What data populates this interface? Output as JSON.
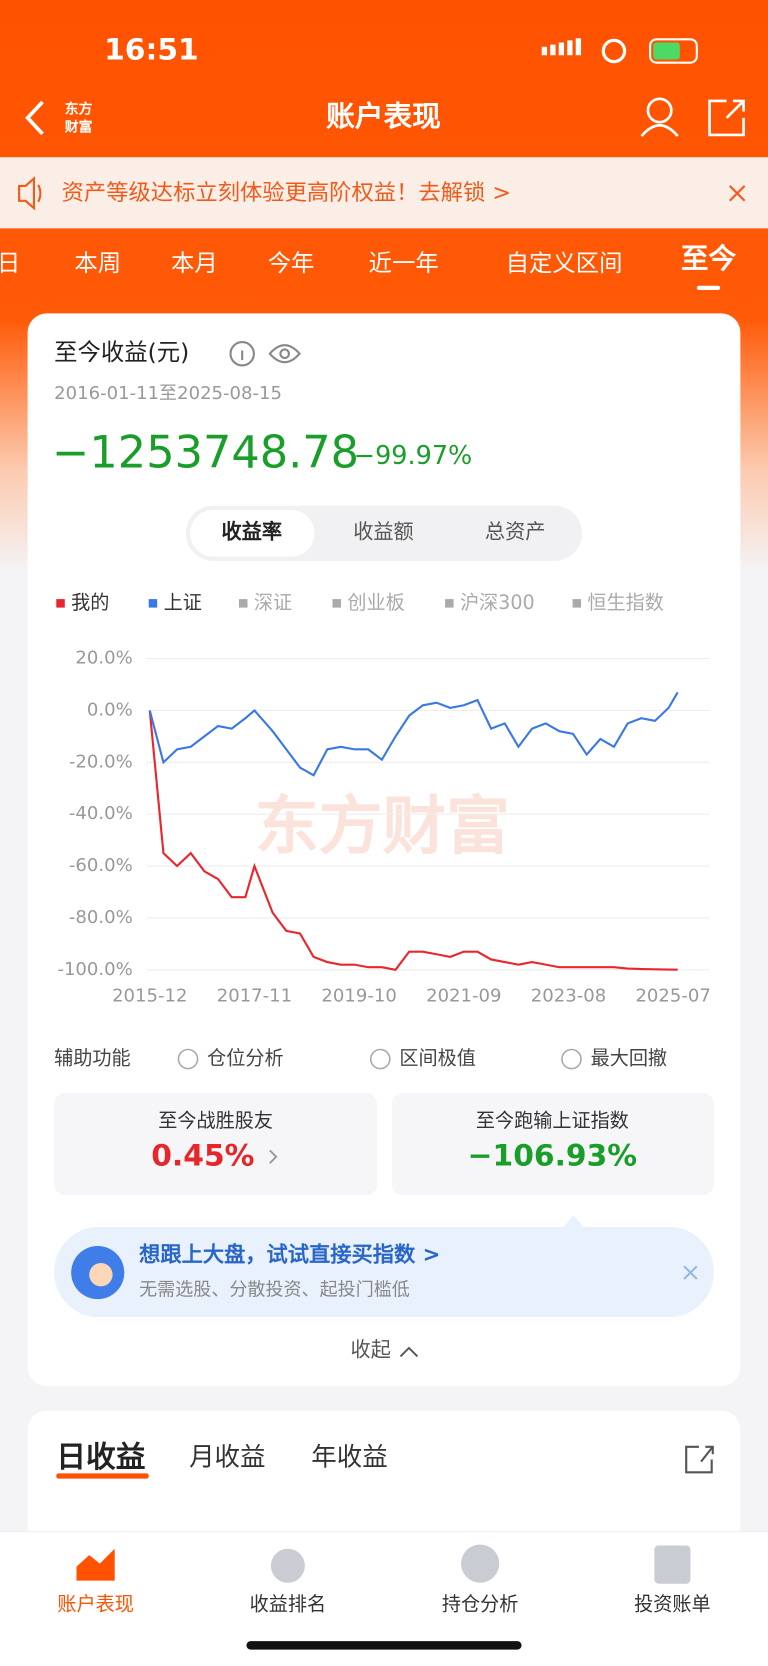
{
  "status_bar": {
    "time": "16:51"
  },
  "nav": {
    "logo": [
      "东方",
      "财富"
    ],
    "title": "账户表现"
  },
  "banner": {
    "text": "资产等级达标立刻体验更高阶权益！去解锁 >"
  },
  "period_tabs": [
    "日",
    "本周",
    "本月",
    "今年",
    "近一年",
    "自定义区间",
    "至今"
  ],
  "summary": {
    "title": "至今收益(元)",
    "date_range": "2016-01-11至2025-08-15",
    "amount": "−1253748.78",
    "percent": "−99.97%"
  },
  "metric_tabs": [
    "收益率",
    "收益额",
    "总资产"
  ],
  "chart_data": {
    "type": "line",
    "watermark": "东方财富",
    "x": [
      "2015-12",
      "2016-03",
      "2016-06",
      "2016-09",
      "2016-12",
      "2017-03",
      "2017-06",
      "2017-09",
      "2017-11",
      "2018-03",
      "2018-06",
      "2018-09",
      "2018-12",
      "2019-03",
      "2019-06",
      "2019-09",
      "2019-12",
      "2020-03",
      "2020-06",
      "2020-09",
      "2020-12",
      "2021-03",
      "2021-06",
      "2021-09",
      "2021-12",
      "2022-03",
      "2022-06",
      "2022-09",
      "2022-12",
      "2023-03",
      "2023-06",
      "2023-09",
      "2023-12",
      "2024-03",
      "2024-06",
      "2024-09",
      "2024-12",
      "2025-03",
      "2025-06",
      "2025-08"
    ],
    "series": [
      {
        "name": "我的",
        "color": "#e8272c",
        "values": [
          0,
          -55,
          -60,
          -55,
          -62,
          -65,
          -72,
          -72,
          -60,
          -78,
          -85,
          -86,
          -95,
          -97,
          -98,
          -98,
          -99,
          -99,
          -100,
          -93,
          -93,
          -94,
          -95,
          -93,
          -93,
          -96,
          -97,
          -98,
          -97,
          -98,
          -99,
          -99,
          -99,
          -99,
          -99,
          -99.5,
          -99.7,
          -99.8,
          -99.9,
          -99.97
        ]
      },
      {
        "name": "上证",
        "color": "#3b78e7",
        "values": [
          0,
          -20,
          -15,
          -14,
          -10,
          -6,
          -7,
          -3,
          0,
          -8,
          -15,
          -22,
          -25,
          -15,
          -14,
          -15,
          -15,
          -19,
          -10,
          -2,
          2,
          3,
          1,
          2,
          4,
          -7,
          -5,
          -14,
          -7,
          -5,
          -8,
          -9,
          -17,
          -11,
          -14,
          -5,
          -3,
          -4,
          1,
          7
        ]
      }
    ],
    "inactive_series": [
      "深证",
      "创业板",
      "沪深300",
      "恒生指数"
    ],
    "xlim": [
      "2015-12",
      "2025-08"
    ],
    "xticks": [
      "2015-12",
      "2017-11",
      "2019-10",
      "2021-09",
      "2023-08",
      "2025-07"
    ],
    "ylim": [
      -100,
      20
    ],
    "yticks": [
      {
        "value": 20,
        "label": "20.0%"
      },
      {
        "value": 0,
        "label": "0.0%"
      },
      {
        "value": -20,
        "label": "-20.0%"
      },
      {
        "value": -40,
        "label": "-40.0%"
      },
      {
        "value": -60,
        "label": "-60.0%"
      },
      {
        "value": -80,
        "label": "-80.0%"
      },
      {
        "value": -100,
        "label": "-100.0%"
      }
    ],
    "grid": true
  },
  "aux": {
    "label": "辅助功能",
    "options": [
      "仓位分析",
      "区间极值",
      "最大回撤"
    ]
  },
  "stats": [
    {
      "label": "至今战胜股友",
      "value": "0.45%"
    },
    {
      "label": "至今跑输上证指数",
      "value": "−106.93%"
    }
  ],
  "promo": {
    "title": "想跟上大盘，试试直接买指数 >",
    "subtitle": "无需选股、分散投资、起投门槛低"
  },
  "collapse": "收起",
  "earnings_tabs": [
    "日收益",
    "月收益",
    "年收益"
  ],
  "bottom_tabs": [
    "账户表现",
    "收益排名",
    "持仓分析",
    "投资账单"
  ]
}
